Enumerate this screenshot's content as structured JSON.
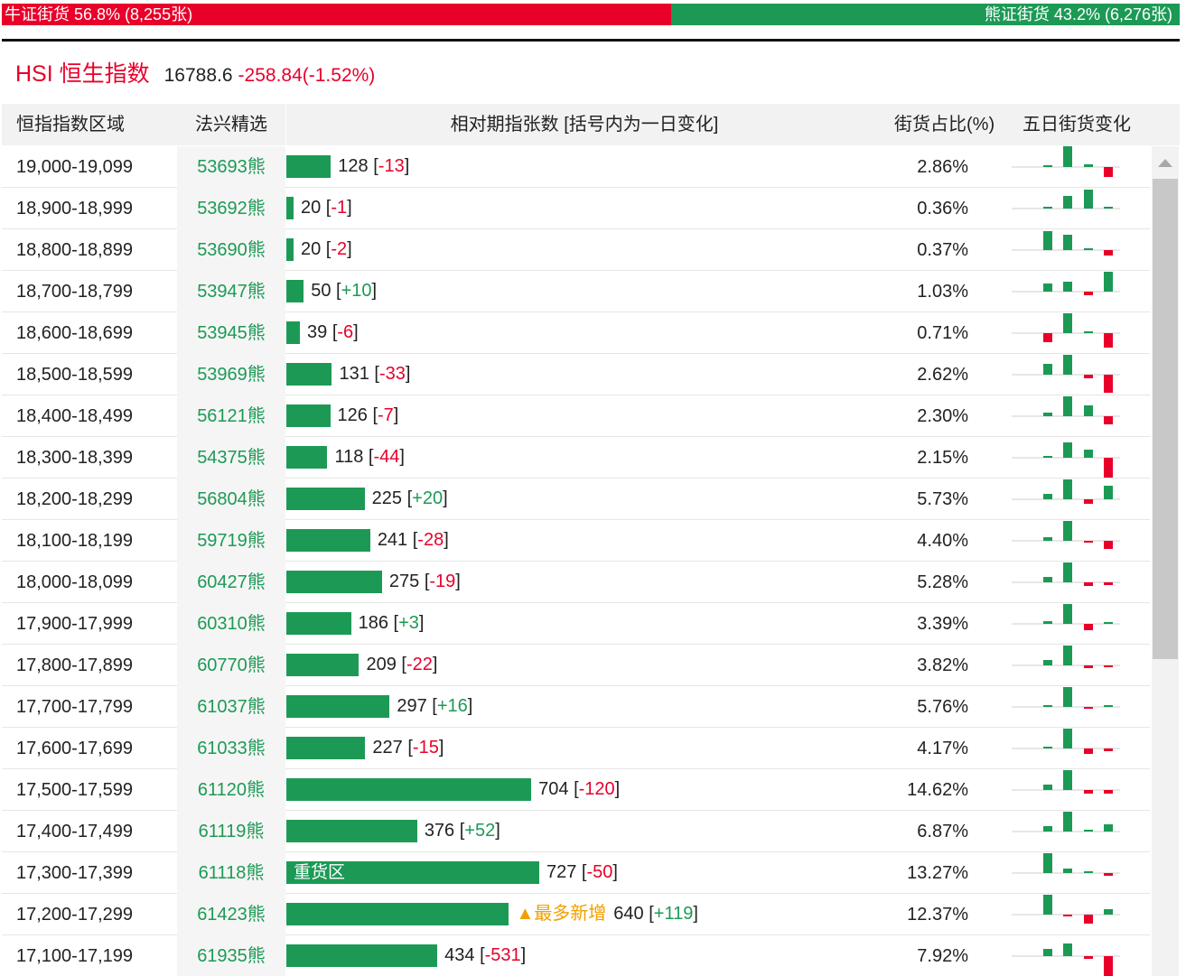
{
  "summary": {
    "bull_label": "牛证街货 56.8% (8,255张)",
    "bear_label": "熊证街货 43.2% (6,276张)",
    "bull_ratio": 0.568
  },
  "index": {
    "name": "HSI 恒生指数",
    "price": "16788.6",
    "change": "-258.84(-1.52%)"
  },
  "headers": {
    "range": "恒指指数区域",
    "warrant": "法兴精选",
    "count": "相对期指张数 [括号内为一日变化]",
    "ratio": "街货占比(%)",
    "five_day": "五日街货变化"
  },
  "colors": {
    "bull": "#e8002a",
    "bear": "#1c9a55",
    "highlight": "#f0a000"
  },
  "rows": [
    {
      "range": "19,000-19,099",
      "warrant": "53693熊",
      "count": 128,
      "change": "-13",
      "ratio": "2.86%",
      "five": [
        0,
        24,
        3,
        -11
      ]
    },
    {
      "range": "18,900-18,999",
      "warrant": "53692熊",
      "count": 20,
      "change": "-1",
      "ratio": "0.36%",
      "five": [
        0,
        14,
        21,
        0
      ]
    },
    {
      "range": "18,800-18,899",
      "warrant": "53690熊",
      "count": 20,
      "change": "-2",
      "ratio": "0.37%",
      "five": [
        21,
        17,
        0,
        -6
      ]
    },
    {
      "range": "18,700-18,799",
      "warrant": "53947熊",
      "count": 50,
      "change": "+10",
      "ratio": "1.03%",
      "five": [
        9,
        11,
        -4,
        22
      ]
    },
    {
      "range": "18,600-18,699",
      "warrant": "53945熊",
      "count": 39,
      "change": "-6",
      "ratio": "0.71%",
      "five": [
        -10,
        22,
        0,
        -16
      ]
    },
    {
      "range": "18,500-18,599",
      "warrant": "53969熊",
      "count": 131,
      "change": "-33",
      "ratio": "2.62%",
      "five": [
        12,
        22,
        -4,
        -20
      ]
    },
    {
      "range": "18,400-18,499",
      "warrant": "56121熊",
      "count": 126,
      "change": "-7",
      "ratio": "2.30%",
      "five": [
        4,
        22,
        12,
        -9
      ]
    },
    {
      "range": "18,300-18,399",
      "warrant": "54375熊",
      "count": 118,
      "change": "-44",
      "ratio": "2.15%",
      "five": [
        1,
        17,
        9,
        -22
      ]
    },
    {
      "range": "18,200-18,299",
      "warrant": "56804熊",
      "count": 225,
      "change": "+20",
      "ratio": "5.73%",
      "five": [
        6,
        22,
        -5,
        15
      ]
    },
    {
      "range": "18,100-18,199",
      "warrant": "59719熊",
      "count": 241,
      "change": "-28",
      "ratio": "4.40%",
      "five": [
        4,
        22,
        -2,
        -9
      ]
    },
    {
      "range": "18,000-18,099",
      "warrant": "60427熊",
      "count": 275,
      "change": "-19",
      "ratio": "5.28%",
      "five": [
        6,
        22,
        -4,
        -3
      ]
    },
    {
      "range": "17,900-17,999",
      "warrant": "60310熊",
      "count": 186,
      "change": "+3",
      "ratio": "3.39%",
      "five": [
        3,
        22,
        -7,
        1
      ]
    },
    {
      "range": "17,800-17,899",
      "warrant": "60770熊",
      "count": 209,
      "change": "-22",
      "ratio": "3.82%",
      "five": [
        6,
        22,
        -3,
        -2
      ]
    },
    {
      "range": "17,700-17,799",
      "warrant": "61037熊",
      "count": 297,
      "change": "+16",
      "ratio": "5.76%",
      "five": [
        2,
        22,
        -2,
        2
      ]
    },
    {
      "range": "17,600-17,699",
      "warrant": "61033熊",
      "count": 227,
      "change": "-15",
      "ratio": "4.17%",
      "five": [
        1,
        22,
        -6,
        -3
      ]
    },
    {
      "range": "17,500-17,599",
      "warrant": "61120熊",
      "count": 704,
      "change": "-120",
      "ratio": "14.62%",
      "five": [
        6,
        22,
        -4,
        -4
      ]
    },
    {
      "range": "17,400-17,499",
      "warrant": "61119熊",
      "count": 376,
      "change": "+52",
      "ratio": "6.87%",
      "five": [
        6,
        22,
        2,
        8
      ]
    },
    {
      "range": "17,300-17,399",
      "warrant": "61118熊",
      "count": 727,
      "change": "-50",
      "ratio": "13.27%",
      "five": [
        22,
        5,
        2,
        -3
      ],
      "bar_label": "重货区"
    },
    {
      "range": "17,200-17,299",
      "warrant": "61423熊",
      "count": 640,
      "change": "+119",
      "ratio": "12.37%",
      "five": [
        22,
        -2,
        -10,
        6
      ],
      "tag": "▲最多新增"
    },
    {
      "range": "17,100-17,199",
      "warrant": "61935熊",
      "count": 434,
      "change": "-531",
      "ratio": "7.92%",
      "five": [
        8,
        14,
        -3,
        -22
      ]
    }
  ]
}
